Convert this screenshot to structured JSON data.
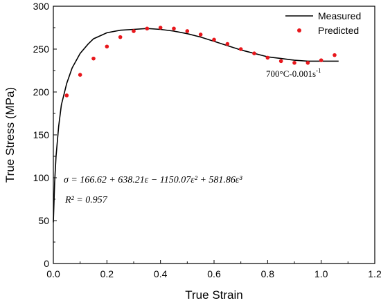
{
  "chart_data": {
    "type": "line",
    "xlabel": "True Strain",
    "ylabel": "True Stress (MPa)",
    "xlim": [
      0.0,
      1.2
    ],
    "ylim": [
      0,
      300
    ],
    "x_ticks": [
      "0.0",
      "0.2",
      "0.4",
      "0.6",
      "0.8",
      "1.0",
      "1.2"
    ],
    "y_ticks": [
      "0",
      "50",
      "100",
      "150",
      "200",
      "250",
      "300"
    ],
    "grid": false,
    "legend_position": "top-right",
    "series": [
      {
        "name": "Measured",
        "style": "line",
        "color": "#000000",
        "x": [
          0.0,
          0.005,
          0.01,
          0.02,
          0.03,
          0.05,
          0.07,
          0.1,
          0.13,
          0.15,
          0.2,
          0.25,
          0.3,
          0.35,
          0.4,
          0.45,
          0.5,
          0.55,
          0.6,
          0.65,
          0.7,
          0.75,
          0.8,
          0.85,
          0.9,
          0.95,
          1.0,
          1.05,
          1.065
        ],
        "y": [
          48,
          95,
          125,
          160,
          185,
          210,
          228,
          245,
          256,
          262,
          269,
          272,
          273,
          274,
          273,
          271,
          268,
          264,
          259,
          254,
          249,
          245,
          241,
          239,
          237,
          236,
          236,
          236,
          236
        ]
      },
      {
        "name": "Predicted",
        "style": "scatter",
        "color": "#e8171c",
        "x": [
          0.05,
          0.1,
          0.15,
          0.2,
          0.25,
          0.3,
          0.35,
          0.4,
          0.45,
          0.5,
          0.55,
          0.6,
          0.65,
          0.7,
          0.75,
          0.8,
          0.85,
          0.9,
          0.95,
          1.0,
          1.05
        ],
        "y": [
          196,
          220,
          239,
          253,
          264,
          271,
          274,
          275,
          274,
          271,
          267,
          261,
          256,
          250,
          245,
          240,
          236,
          234,
          234,
          237,
          243
        ]
      }
    ],
    "annotations": {
      "condition": "700°C-0.001s",
      "condition_sup": "-1",
      "equation": "σ = 166.62 + 638.21ε − 1150.07ε² + 581.86ε³",
      "r_squared": "R² = 0.957"
    }
  }
}
